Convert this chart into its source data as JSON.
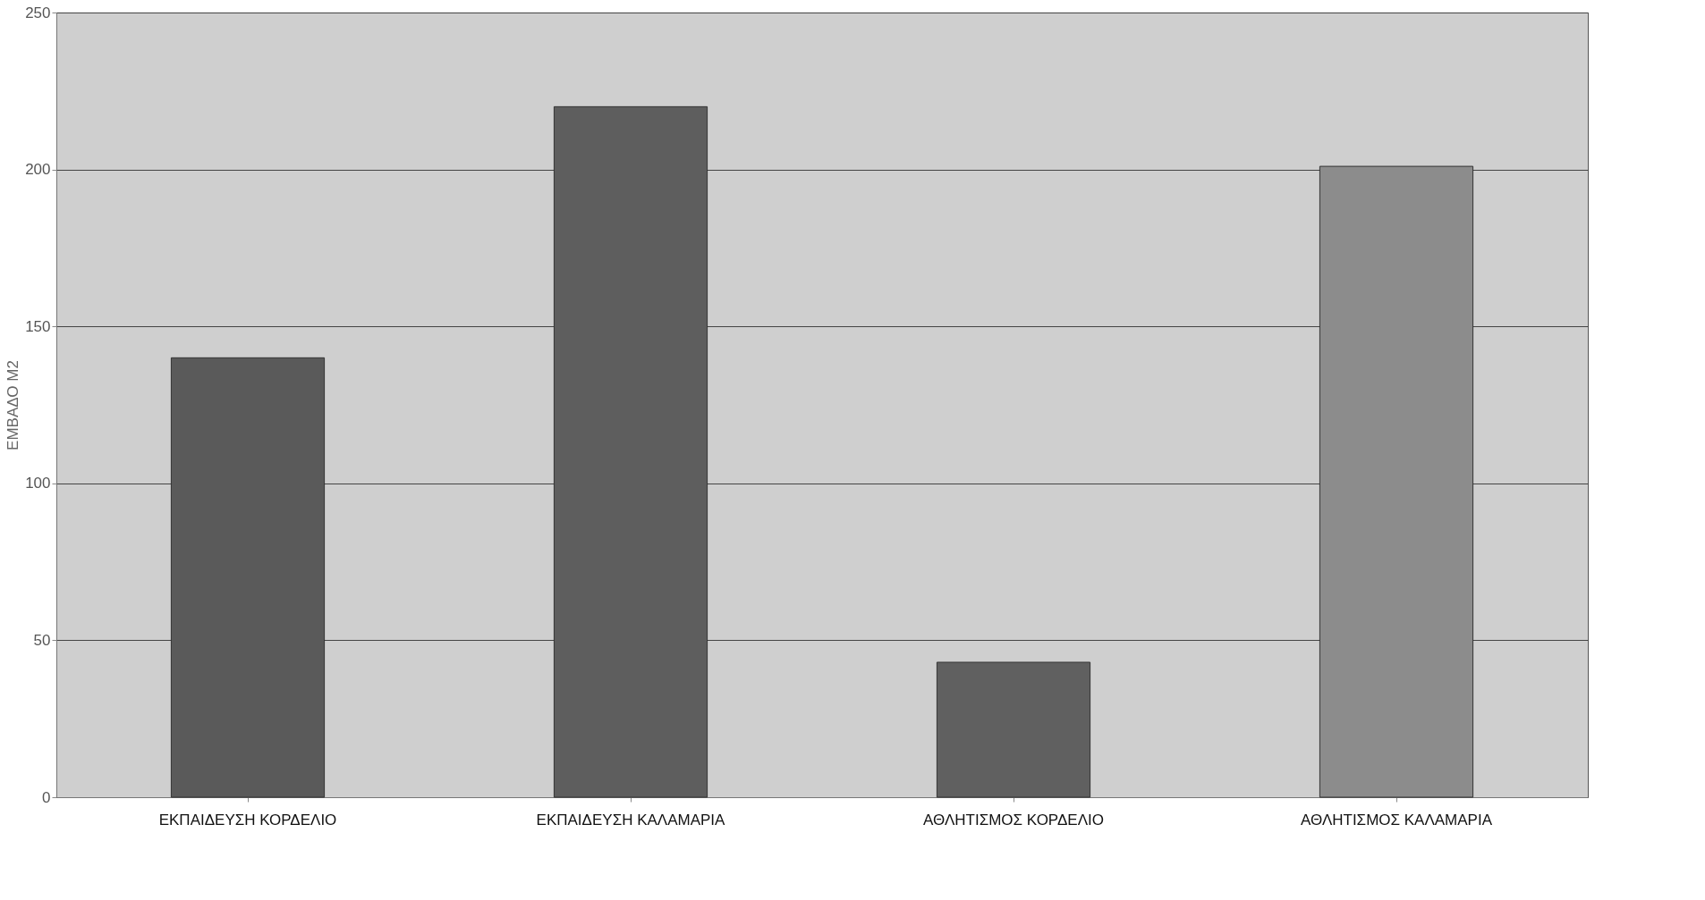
{
  "chart_data": {
    "type": "bar",
    "ylabel": "ΕΜΒΑΔΟ Μ2",
    "categories": [
      "ΕΚΠΑΙΔΕΥΣΗ ΚΟΡΔΕΛΙΟ",
      "ΕΚΠΑΙΔΕΥΣΗ ΚΑΛΑΜΑΡΙΑ",
      "ΑΘΛΗΤΙΣΜΟΣ ΚΟΡΔΕΛΙΟ",
      "ΑΘΛΗΤΙΣΜΟΣ ΚΑΛΑΜΑΡΙΑ"
    ],
    "values": [
      140,
      220,
      43,
      201
    ],
    "colors": [
      "#5a5a5a",
      "#5e5e5e",
      "#606060",
      "#8c8c8c"
    ],
    "ylim": [
      0,
      250
    ],
    "yticks": [
      0,
      50,
      100,
      150,
      200,
      250
    ],
    "grid": "y"
  }
}
